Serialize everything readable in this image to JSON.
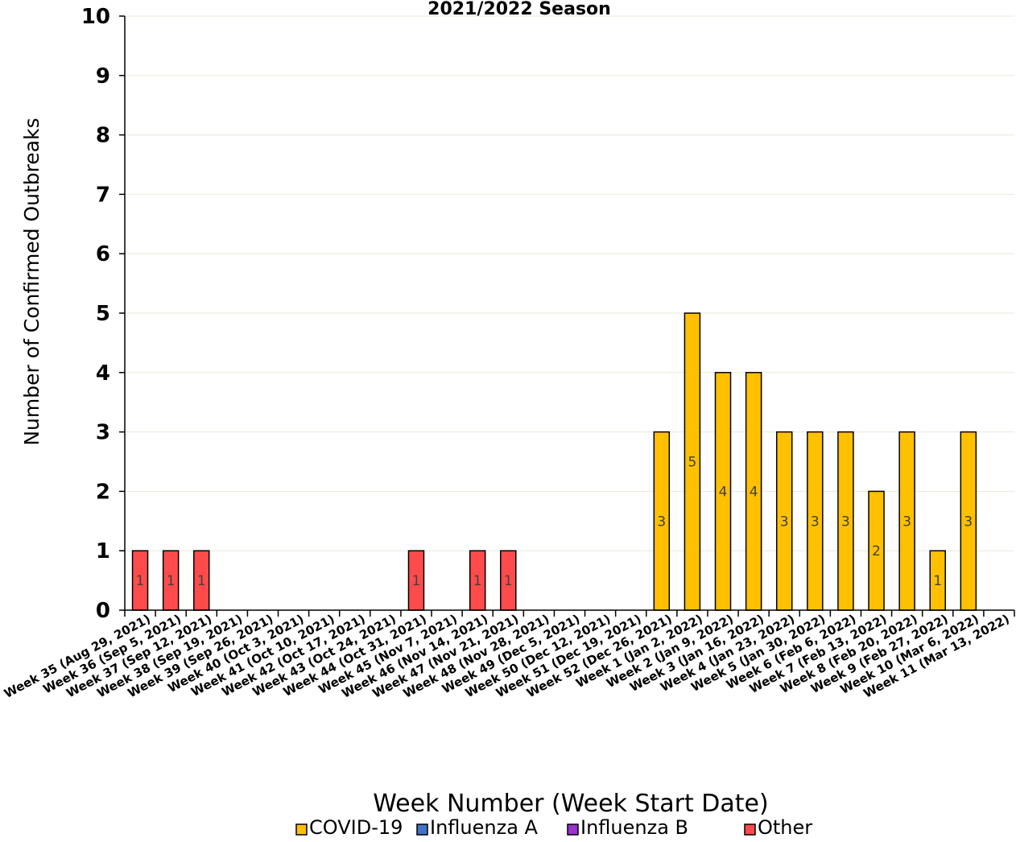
{
  "chart_data": {
    "type": "bar",
    "stacked": true,
    "title": "2021/2022 Season",
    "xlabel": "Week Number (Week Start Date)",
    "ylabel": "Number of Confirmed Outbreaks",
    "ylim": [
      0,
      10
    ],
    "yticks": [
      0,
      1,
      2,
      3,
      4,
      5,
      6,
      7,
      8,
      9,
      10
    ],
    "grid": true,
    "legend_position": "bottom",
    "categories": [
      "Week 35 (Aug 29, 2021)",
      "Week 36 (Sep 5, 2021)",
      "Week 37 (Sep 12, 2021)",
      "Week 38 (Sep 19, 2021)",
      "Week 39 (Sep 26, 2021)",
      "Week 40 (Oct 3, 2021)",
      "Week 41 (Oct 10, 2021)",
      "Week 42 (Oct 17, 2021)",
      "Week 43 (Oct 24, 2021)",
      "Week 44 (Oct 31, 2021)",
      "Week 45 (Nov 7, 2021)",
      "Week 46 (Nov 14, 2021)",
      "Week 47 (Nov 21, 2021)",
      "Week 48 (Nov 28, 2021)",
      "Week 49 (Dec 5, 2021)",
      "Week 50 (Dec 12, 2021)",
      "Week 51 (Dec 19, 2021)",
      "Week 52 (Dec 26, 2021)",
      "Week 1 (Jan 2, 2022)",
      "Week 2 (Jan 9, 2022)",
      "Week 3 (Jan 16, 2022)",
      "Week 4 (Jan 23, 2022)",
      "Week 5 (Jan 30, 2022)",
      "Week 6 (Feb 6, 2022)",
      "Week 7 (Feb 13, 2022)",
      "Week 8 (Feb 20, 2022)",
      "Week 9 (Feb 27, 2022)",
      "Week 10 (Mar 6, 2022)",
      "Week 11 (Mar 13, 2022)"
    ],
    "series": [
      {
        "name": "COVID-19",
        "color": "#FFC000",
        "values": [
          0,
          0,
          0,
          0,
          0,
          0,
          0,
          0,
          0,
          0,
          0,
          0,
          0,
          0,
          0,
          0,
          0,
          3,
          5,
          4,
          4,
          3,
          3,
          3,
          2,
          3,
          1,
          3,
          0
        ]
      },
      {
        "name": "Influenza A",
        "color": "#4472C4",
        "values": [
          0,
          0,
          0,
          0,
          0,
          0,
          0,
          0,
          0,
          0,
          0,
          0,
          0,
          0,
          0,
          0,
          0,
          0,
          0,
          0,
          0,
          0,
          0,
          0,
          0,
          0,
          0,
          0,
          0
        ]
      },
      {
        "name": "Influenza B",
        "color": "#9933CC",
        "values": [
          0,
          0,
          0,
          0,
          0,
          0,
          0,
          0,
          0,
          0,
          0,
          0,
          0,
          0,
          0,
          0,
          0,
          0,
          0,
          0,
          0,
          0,
          0,
          0,
          0,
          0,
          0,
          0,
          0
        ]
      },
      {
        "name": "Other",
        "color": "#FF4B4B",
        "values": [
          1,
          1,
          1,
          0,
          0,
          0,
          0,
          0,
          0,
          1,
          0,
          1,
          1,
          0,
          0,
          0,
          0,
          0,
          0,
          0,
          0,
          0,
          0,
          0,
          0,
          0,
          0,
          0,
          0
        ]
      }
    ]
  }
}
